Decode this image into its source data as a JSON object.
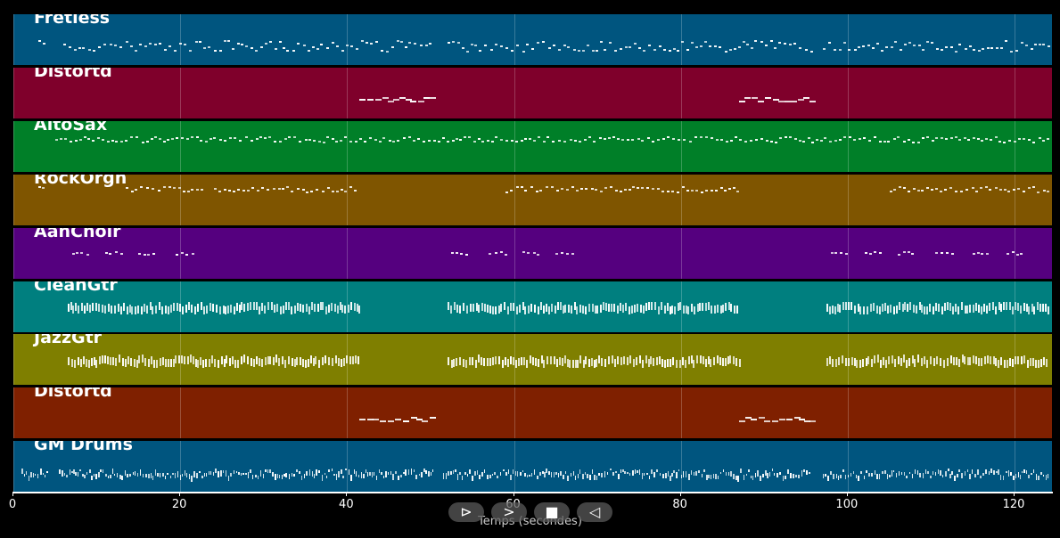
{
  "tracks": [
    {
      "name": "Fretless",
      "color": "#00557f"
    },
    {
      "name": "Distortd",
      "color": "#7f002b"
    },
    {
      "name": "AltoSax",
      "color": "#007f28"
    },
    {
      "name": "RockOrgn",
      "color": "#7f5500"
    },
    {
      "name": "AahChoir",
      "color": "#55007f"
    },
    {
      "name": "CleanGtr",
      "color": "#007f7f"
    },
    {
      "name": "JazzGtr",
      "color": "#7f7f00"
    },
    {
      "name": "Distortd",
      "color": "#7f2000"
    },
    {
      "name": "GM Drums",
      "color": "#00557f"
    }
  ],
  "axis": {
    "label": "Temps (secondes)",
    "range": [
      0,
      124.7
    ],
    "ticks": [
      0,
      20,
      40,
      60,
      80,
      100,
      120
    ]
  },
  "controls": [
    {
      "icon": "play-icon",
      "glyph": "⊳"
    },
    {
      "icon": "next-icon",
      "glyph": ">"
    },
    {
      "icon": "stop-icon",
      "glyph": "■"
    },
    {
      "icon": "previous-icon",
      "glyph": "◁"
    }
  ]
}
